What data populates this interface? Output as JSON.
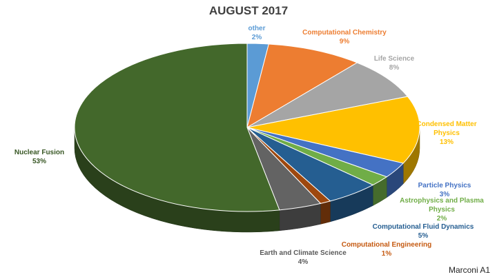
{
  "chart_data": {
    "type": "pie",
    "title": "AUGUST 2017",
    "slices": [
      {
        "name": "other",
        "value": 2,
        "label": "2%",
        "color": "#5B9BD5"
      },
      {
        "name": "Computational Chemistry",
        "value": 9,
        "label": "9%",
        "color": "#ED7D31"
      },
      {
        "name": "Life Science",
        "value": 8,
        "label": "8%",
        "color": "#A5A5A5"
      },
      {
        "name": "Condensed Matter Physics",
        "value": 13,
        "label": "13%",
        "color": "#FFC000"
      },
      {
        "name": "Particle Physics",
        "value": 3,
        "label": "3%",
        "color": "#4472C4"
      },
      {
        "name": "Astrophysics and Plasma Physics",
        "value": 2,
        "label": "2%",
        "color": "#70AD47"
      },
      {
        "name": "Computational Fluid Dynamics",
        "value": 5,
        "label": "5%",
        "color": "#255E91"
      },
      {
        "name": "Computational Engineering",
        "value": 1,
        "label": "1%",
        "color": "#9E480E"
      },
      {
        "name": "Earth and Climate Science",
        "value": 4,
        "label": "4%",
        "color": "#636363"
      },
      {
        "name": "Nuclear Fusion",
        "value": 53,
        "label": "53%",
        "color": "#43682B"
      }
    ],
    "label_colors": {
      "other": "#5B9BD5",
      "Computational Chemistry": "#ED7D31",
      "Life Science": "#A5A5A5",
      "Condensed Matter Physics": "#FFC000",
      "Particle Physics": "#4472C4",
      "Astrophysics and Plasma Physics": "#70AD47",
      "Computational Fluid Dynamics": "#255E91",
      "Computational Engineering": "#C55A11",
      "Earth and Climate Science": "#595959",
      "Nuclear Fusion": "#375623"
    }
  },
  "footer": {
    "text": "Marconi A1"
  }
}
